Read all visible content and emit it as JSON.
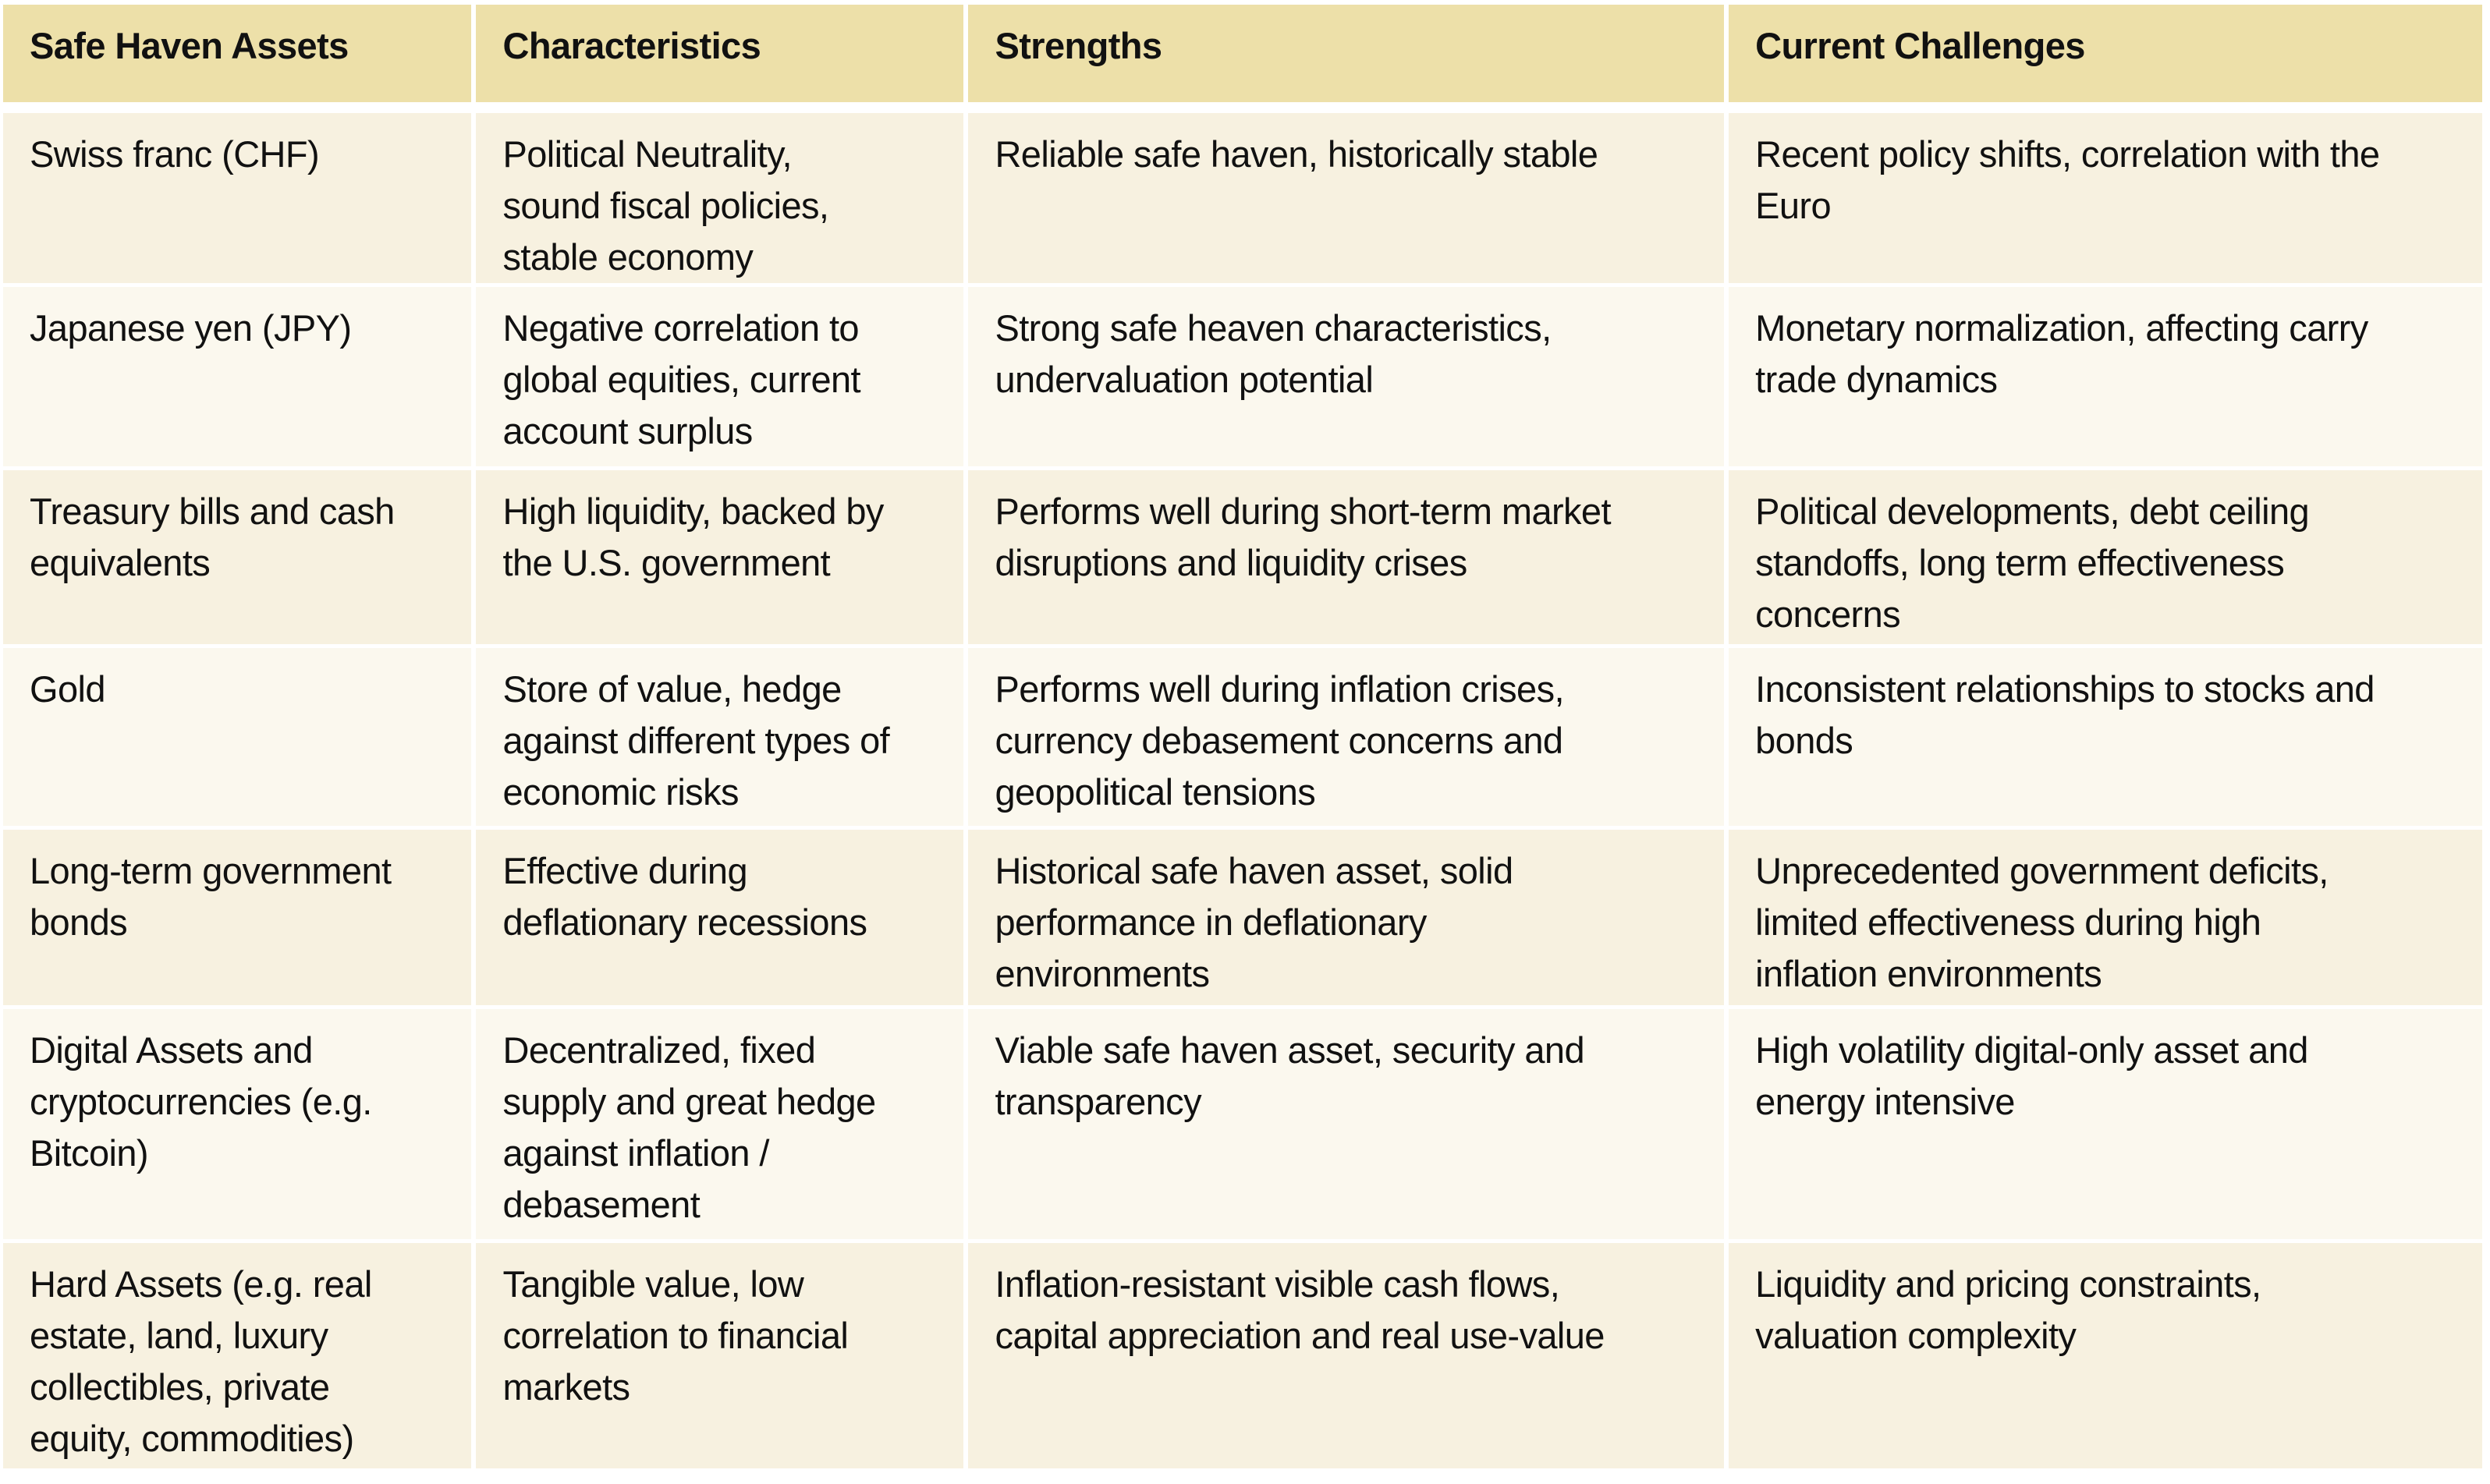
{
  "headers": [
    "Safe Haven Assets",
    "Characteristics",
    "Strengths",
    "Current Challenges"
  ],
  "rows": [
    [
      "Swiss franc (CHF)",
      "Political Neutrality,\nsound fiscal policies,\nstable economy",
      "Reliable safe haven, historically stable",
      "Recent policy shifts, correlation with the\nEuro"
    ],
    [
      "Japanese yen (JPY)",
      "Negative correlation to\nglobal equities, current\naccount surplus",
      "Strong safe heaven characteristics,\nundervaluation potential",
      "Monetary normalization, affecting carry\ntrade dynamics"
    ],
    [
      "Treasury bills and cash\nequivalents",
      "High liquidity, backed by\nthe U.S. government",
      "Performs well during short-term market\ndisruptions and liquidity crises",
      "Political developments, debt ceiling\nstandoffs, long term effectiveness\nconcerns"
    ],
    [
      "Gold",
      "Store of value, hedge\nagainst different types of\neconomic risks",
      "Performs well during inflation crises,\ncurrency debasement concerns and\ngeopolitical tensions",
      "Inconsistent relationships to stocks and\nbonds"
    ],
    [
      "Long-term government\nbonds",
      "Effective during\ndeflationary recessions",
      "Historical safe haven asset, solid\nperformance in deflationary\nenvironments",
      "Unprecedented government deficits,\nlimited effectiveness during high\ninflation environments"
    ],
    [
      "Digital Assets and\ncryptocurrencies (e.g.\nBitcoin)",
      "Decentralized, fixed\nsupply and great hedge\nagainst inflation /\ndebasement",
      "Viable safe haven asset, security and\ntransparency",
      "High volatility digital-only asset and\nenergy intensive"
    ],
    [
      "Hard Assets (e.g. real\nestate, land, luxury\ncollectibles, private\nequity, commodities)",
      "Tangible value, low\ncorrelation to financial\nmarkets",
      "Inflation-resistant visible cash flows,\ncapital appreciation and real use-value",
      "Liquidity and pricing constraints,\nvaluation complexity"
    ]
  ],
  "colors": {
    "header": "#ede0a9",
    "row_odd": "#f7f1e0",
    "row_even": "#fbf8ee"
  }
}
